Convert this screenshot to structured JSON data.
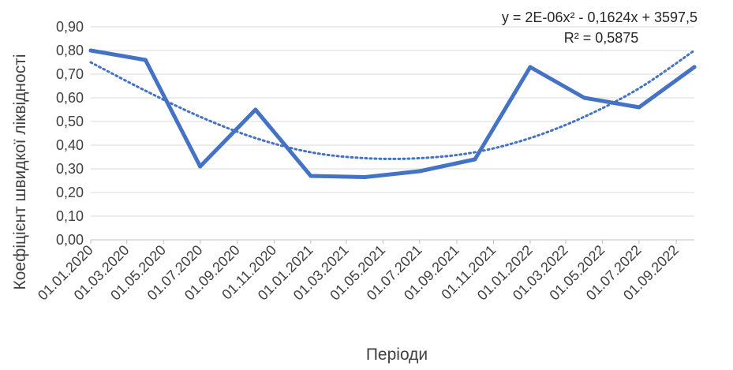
{
  "chart_data": {
    "type": "line",
    "xlabel": "Періоди",
    "ylabel": "Коефіцієнт  швидкої ліквідності",
    "ylim": [
      0,
      0.9
    ],
    "yticks": [
      "0,00",
      "0,10",
      "0,20",
      "0,30",
      "0,40",
      "0,50",
      "0,60",
      "0,70",
      "0,80",
      "0,90"
    ],
    "x_tick_labels": [
      "01.01.2020",
      "01.03.2020",
      "01.05.2020",
      "01.07.2020",
      "01.09.2020",
      "01.11.2020",
      "01.01.2021",
      "01.03.2021",
      "01.05.2021",
      "01.07.2021",
      "01.09.2021",
      "01.11.2021",
      "01.01.2022",
      "01.03.2022",
      "01.05.2022",
      "01.07.2022",
      "01.09.2022"
    ],
    "series": [
      {
        "kind": "data",
        "x": [
          "2020-01-01",
          "2020-04-01",
          "2020-07-01",
          "2020-10-01",
          "2021-01-01",
          "2021-04-01",
          "2021-07-01",
          "2021-10-01",
          "2022-01-01",
          "2022-04-01",
          "2022-07-01",
          "2022-10-01"
        ],
        "values": [
          0.8,
          0.76,
          0.31,
          0.55,
          0.27,
          0.265,
          0.29,
          0.34,
          0.73,
          0.6,
          0.56,
          0.73
        ],
        "color": "#4472C4"
      },
      {
        "kind": "trendline",
        "type": "polynomial",
        "x": [
          "2020-01-01",
          "2020-04-01",
          "2020-07-01",
          "2020-10-01",
          "2021-01-01",
          "2021-04-01",
          "2021-07-01",
          "2021-10-01",
          "2022-01-01",
          "2022-04-01",
          "2022-07-01",
          "2022-10-01"
        ],
        "values": [
          0.75,
          0.63,
          0.52,
          0.43,
          0.37,
          0.345,
          0.345,
          0.37,
          0.43,
          0.52,
          0.64,
          0.8
        ],
        "color": "#4472C4",
        "style": "dotted"
      }
    ],
    "annotations": {
      "equation": "y = 2E-06x² - 0,1624x + 3597,5",
      "r_squared": "R² = 0,5875"
    },
    "grid": true,
    "legend": "none"
  }
}
